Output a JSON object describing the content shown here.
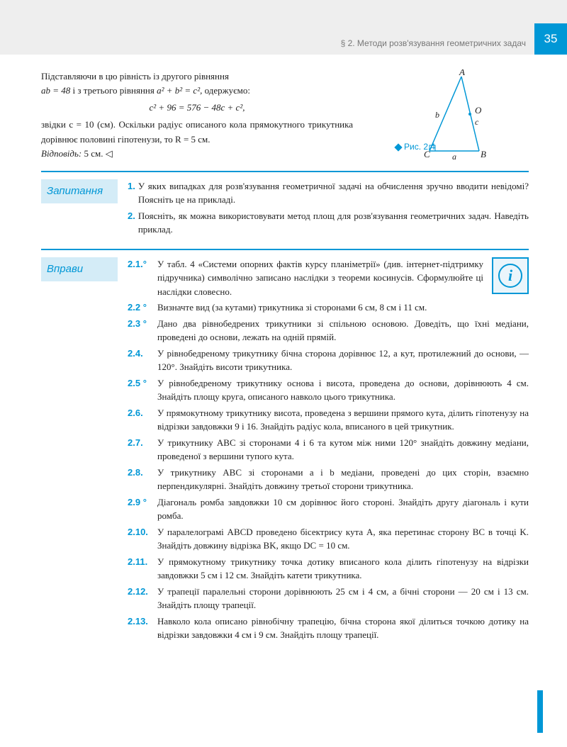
{
  "page_number": "35",
  "section_header": "§ 2. Методи розв'язування геометричних задач",
  "top": {
    "p1": "Підставляючи в цю рівність із другого рівняння",
    "p2_before": "і з третього рівняння",
    "p2_after": "одержуємо:",
    "eq_ab": "ab = 48",
    "eq_abc": "a² + b² = c²,",
    "eq_main": "c² + 96 = 576 − 48c + c²,",
    "p3": "звідки c = 10 (см). Оскільки радіус описаного кола прямокутного трикутника дорівнює половині гіпотенузи, то R = 5 см.",
    "answer_label": "Відповідь:",
    "answer": "5 см. ◁"
  },
  "figure": {
    "label": "Рис. 2.4",
    "vertices": {
      "A": "A",
      "B": "B",
      "C": "C",
      "O": "O"
    },
    "sides": {
      "a": "a",
      "b": "b",
      "c": "c"
    }
  },
  "questions": {
    "title": "Запитання",
    "items": [
      {
        "num": "1.",
        "text": "У яких випадках для розв'язування геометричної задачі на обчислення зручно вводити невідомі? Поясніть це на прикладі."
      },
      {
        "num": "2.",
        "text": "Поясніть, як можна використовувати метод площ для розв'язування геометричних задач. Наведіть приклад."
      }
    ]
  },
  "exercises": {
    "title": "Вправи",
    "items": [
      {
        "num": "2.1.°",
        "text": "У табл. 4 «Системи опорних фактів курсу планіметрії» (див. інтернет-підтримку підручника) символічно записано наслідки з теореми косинусів. Сформулюйте ці наслідки словесно.",
        "narrow": true
      },
      {
        "num": "2.2 °",
        "text": "Визначте вид (за кутами) трикутника зі сторонами 6 см, 8 см і 11 см.",
        "narrow": true
      },
      {
        "num": "2.3 °",
        "text": "Дано два рівнобедрених трикутники зі спільною основою. Доведіть, що їхні медіани, проведені до основи, лежать на одній прямій."
      },
      {
        "num": "2.4.",
        "text": "У рівнобедреному трикутнику бічна сторона дорівнює 12, а кут, протилежний до основи, — 120°. Знайдіть висоти трикутника."
      },
      {
        "num": "2.5 °",
        "text": "У рівнобедреному трикутнику основа і висота, проведена до основи, дорівнюють 4 см. Знайдіть площу круга, описаного навколо цього трикутника."
      },
      {
        "num": "2.6.",
        "text": "У прямокутному трикутнику висота, проведена з вершини прямого кута, ділить гіпотенузу на відрізки завдовжки 9 і 16. Знайдіть радіус кола, вписаного в цей трикутник."
      },
      {
        "num": "2.7.",
        "text": "У трикутнику ABC зі сторонами 4 і 6 та кутом між ними 120° знайдіть довжину медіани, проведеної з вершини тупого кута."
      },
      {
        "num": "2.8.",
        "text": "У трикутнику ABC зі сторонами a і b медіани, проведені до цих сторін, взаємно перпендикулярні. Знайдіть довжину третьої сторони трикутника."
      },
      {
        "num": "2.9 °",
        "text": "Діагональ ромба завдовжки 10 см дорівнює його стороні. Знайдіть другу діагональ і кути ромба."
      },
      {
        "num": "2.10.",
        "text": "У паралелограмі ABCD проведено бісектрису кута A, яка перетинає сторону BC в точці K. Знайдіть довжину відрізка BK, якщо DC = 10 см."
      },
      {
        "num": "2.11.",
        "text": "У прямокутному трикутнику точка дотику вписаного кола ділить гіпотенузу на відрізки завдовжки 5 см і 12 см. Знайдіть катети трикутника."
      },
      {
        "num": "2.12.",
        "text": "У трапеції паралельні сторони дорівнюють 25 см і 4 см, а бічні сторони — 20 см і 13 см. Знайдіть площу трапеції."
      },
      {
        "num": "2.13.",
        "text": "Навколо кола описано рівнобічну трапецію, бічна сторона якої ділиться точкою дотику на відрізки завдовжки 4 см і 9 см. Знайдіть площу трапеції."
      }
    ]
  },
  "colors": {
    "accent": "#0097d6",
    "label_bg": "#d4ecf7",
    "header_bg": "#eeeeee"
  }
}
